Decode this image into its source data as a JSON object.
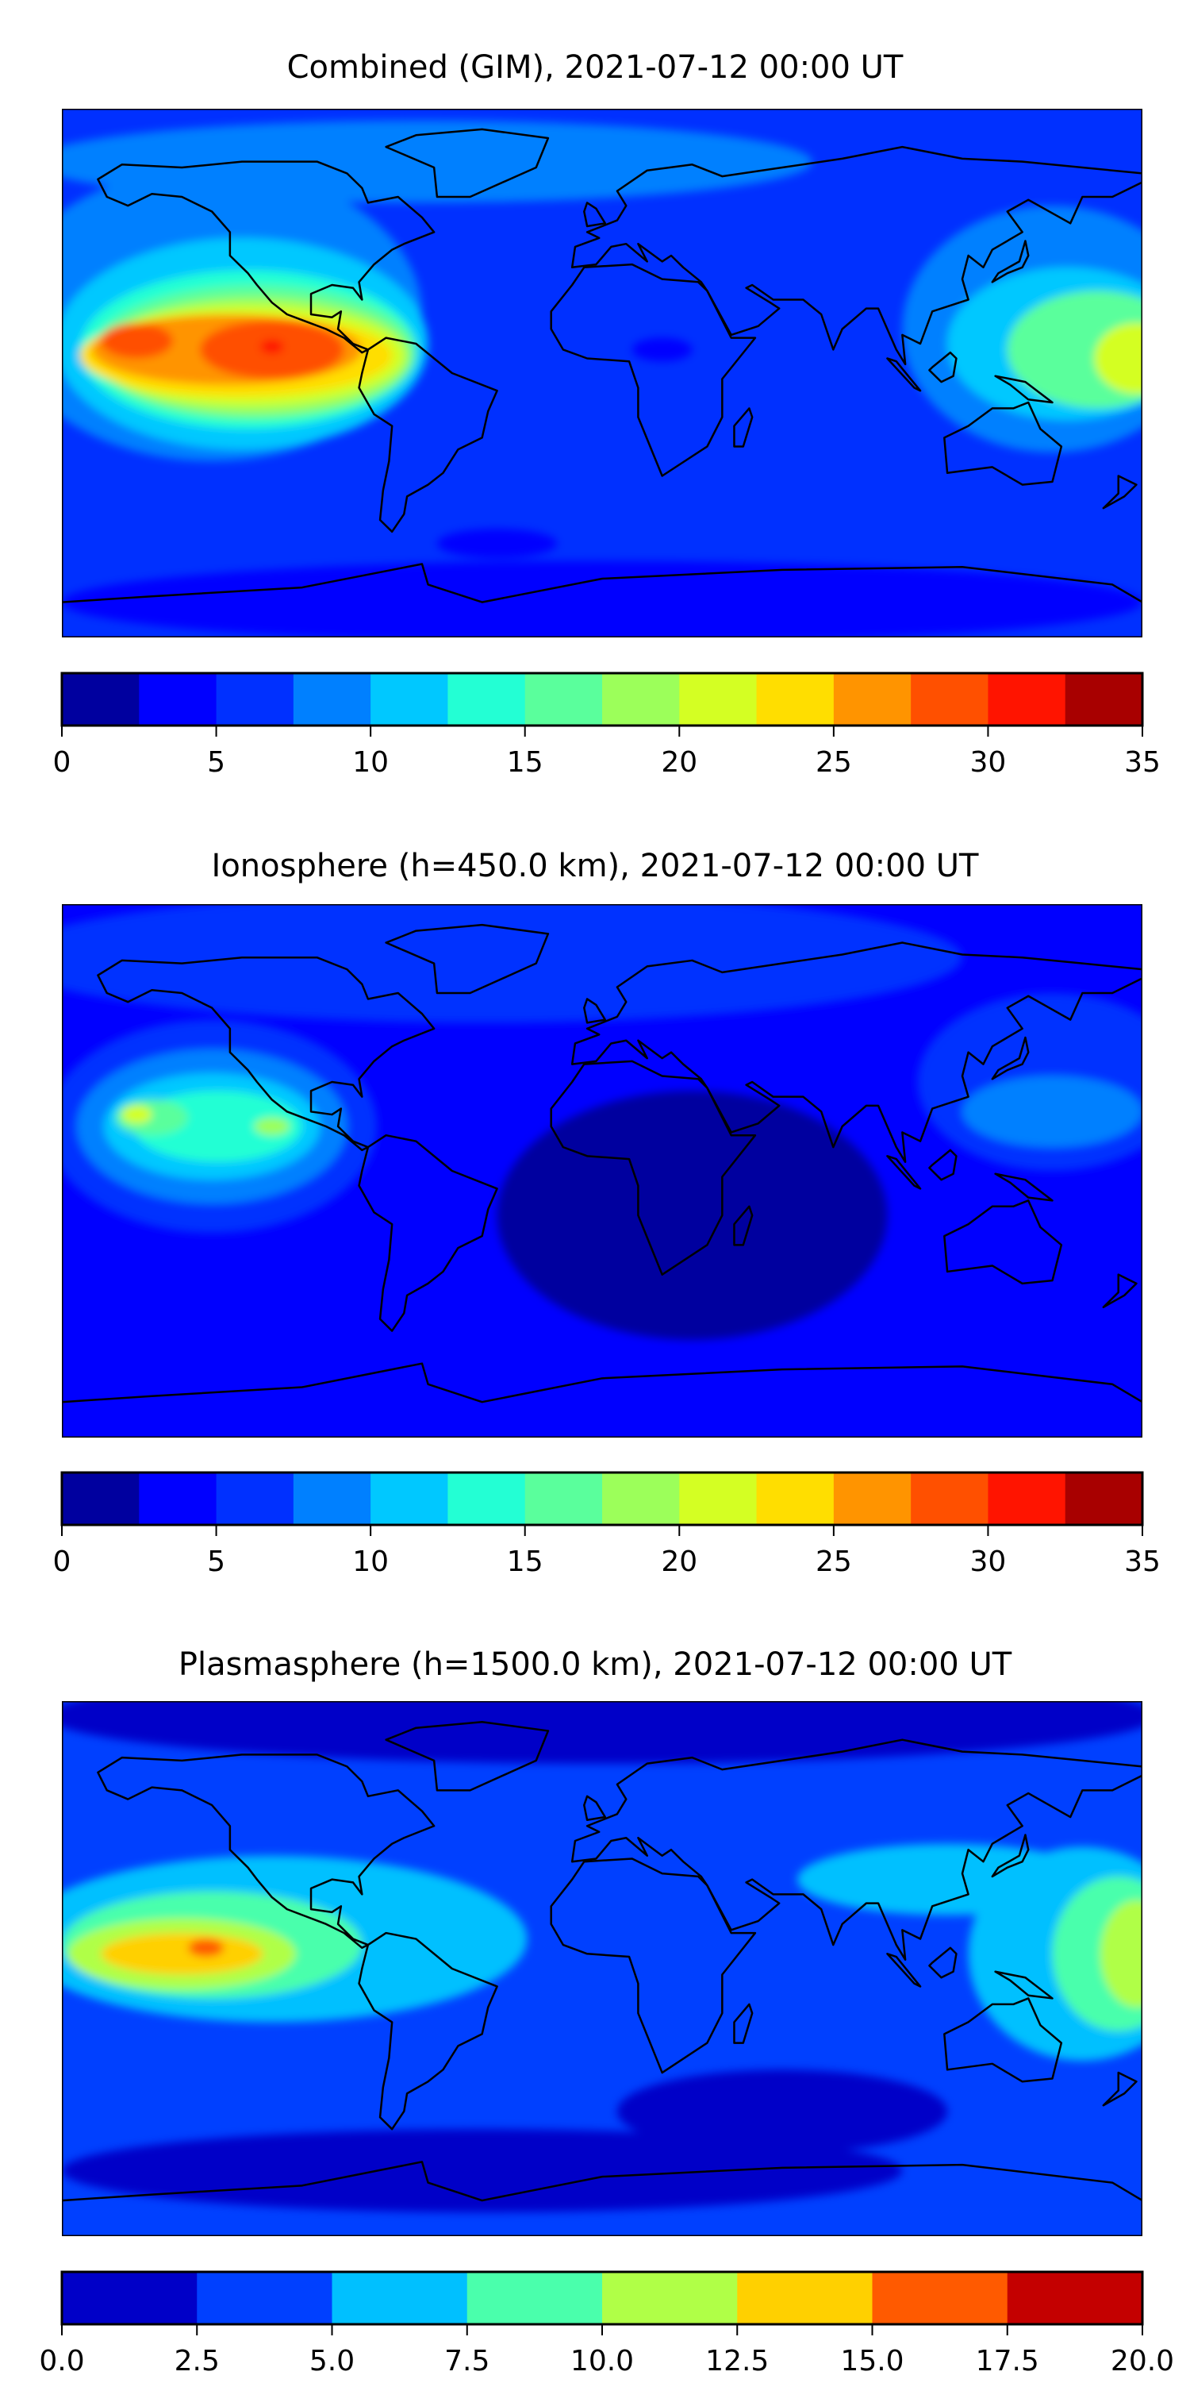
{
  "chart_data": [
    {
      "type": "heatmap",
      "title": "Combined (GIM), 2021-07-12 00:00 UT",
      "xlim": [
        -180,
        180
      ],
      "ylim": [
        -90,
        90
      ],
      "colorbar": {
        "levels": [
          0,
          2.5,
          5,
          7.5,
          10,
          12.5,
          15,
          17.5,
          20,
          22.5,
          25,
          27.5,
          30,
          32.5,
          35
        ],
        "colors": [
          "#00009F",
          "#0000FF",
          "#0030FF",
          "#0080FF",
          "#00C8FF",
          "#23FFD4",
          "#5AFF9C",
          "#9CFF5A",
          "#D4FF23",
          "#FFDE00",
          "#FF9400",
          "#FF5000",
          "#FF1400",
          "#A80000"
        ],
        "ticks": [
          "0",
          "5",
          "10",
          "15",
          "20",
          "25",
          "30",
          "35"
        ],
        "tick_values": [
          0,
          5,
          10,
          15,
          20,
          25,
          30,
          35
        ]
      },
      "background_level": 2,
      "field_blobs": [
        {
          "lon": -60,
          "lat": 72,
          "rx": 130,
          "ry": 14,
          "level": 3
        },
        {
          "lon": -130,
          "lat": 20,
          "rx": 70,
          "ry": 50,
          "level": 3
        },
        {
          "lon": -120,
          "lat": 10,
          "rx": 62,
          "ry": 36,
          "level": 4
        },
        {
          "lon": -118,
          "lat": 8,
          "rx": 56,
          "ry": 27,
          "level": 5
        },
        {
          "lon": -116,
          "lat": 7,
          "rx": 54,
          "ry": 23,
          "level": 6
        },
        {
          "lon": -116,
          "lat": 6,
          "rx": 52,
          "ry": 20,
          "level": 7
        },
        {
          "lon": -118,
          "lat": 6,
          "rx": 52,
          "ry": 17,
          "level": 8
        },
        {
          "lon": -122,
          "lat": 6,
          "rx": 52,
          "ry": 14,
          "level": 9
        },
        {
          "lon": -125,
          "lat": 8,
          "rx": 45,
          "ry": 12,
          "level": 10
        },
        {
          "lon": -110,
          "lat": 8,
          "rx": 24,
          "ry": 10,
          "level": 11
        },
        {
          "lon": -155,
          "lat": 11,
          "rx": 12,
          "ry": 6,
          "level": 11
        },
        {
          "lon": -110,
          "lat": 9,
          "rx": 4,
          "ry": 2.5,
          "level": 12
        },
        {
          "lon": 150,
          "lat": 15,
          "rx": 50,
          "ry": 42,
          "level": 3
        },
        {
          "lon": 155,
          "lat": 10,
          "rx": 40,
          "ry": 26,
          "level": 4
        },
        {
          "lon": 165,
          "lat": 8,
          "rx": 30,
          "ry": 20,
          "level": 6
        },
        {
          "lon": 178,
          "lat": 5,
          "rx": 14,
          "ry": 12,
          "level": 8
        },
        {
          "lon": 0,
          "lat": -78,
          "rx": 180,
          "ry": 14,
          "level": 1
        },
        {
          "lon": 20,
          "lat": 8,
          "rx": 10,
          "ry": 4,
          "level": 1
        },
        {
          "lon": -35,
          "lat": -58,
          "rx": 20,
          "ry": 5,
          "level": 1
        }
      ]
    },
    {
      "type": "heatmap",
      "title": "Ionosphere  (h=450.0 km), 2021-07-12 00:00 UT",
      "xlim": [
        -180,
        180
      ],
      "ylim": [
        -90,
        90
      ],
      "colorbar": {
        "levels": [
          0,
          2.5,
          5,
          7.5,
          10,
          12.5,
          15,
          17.5,
          20,
          22.5,
          25,
          27.5,
          30,
          32.5,
          35
        ],
        "colors": [
          "#00009F",
          "#0000FF",
          "#0030FF",
          "#0080FF",
          "#00C8FF",
          "#23FFD4",
          "#5AFF9C",
          "#9CFF5A",
          "#D4FF23",
          "#FFDE00",
          "#FF9400",
          "#FF5000",
          "#FF1400",
          "#A80000"
        ],
        "ticks": [
          "0",
          "5",
          "10",
          "15",
          "20",
          "25",
          "30",
          "35"
        ],
        "tick_values": [
          0,
          5,
          10,
          15,
          20,
          25,
          30,
          35
        ]
      },
      "background_level": 1,
      "field_blobs": [
        {
          "lon": -40,
          "lat": 72,
          "rx": 160,
          "ry": 22,
          "level": 2
        },
        {
          "lon": 150,
          "lat": 30,
          "rx": 45,
          "ry": 30,
          "level": 2
        },
        {
          "lon": 30,
          "lat": -15,
          "rx": 65,
          "ry": 42,
          "level": 0
        },
        {
          "lon": -130,
          "lat": 15,
          "rx": 55,
          "ry": 36,
          "level": 2
        },
        {
          "lon": -130,
          "lat": 15,
          "rx": 45,
          "ry": 26,
          "level": 3
        },
        {
          "lon": -130,
          "lat": 15,
          "rx": 36,
          "ry": 18,
          "level": 4
        },
        {
          "lon": -128,
          "lat": 15,
          "rx": 28,
          "ry": 12,
          "level": 5
        },
        {
          "lon": -150,
          "lat": 18,
          "rx": 12,
          "ry": 6,
          "level": 6
        },
        {
          "lon": -155,
          "lat": 19,
          "rx": 5,
          "ry": 3,
          "level": 8
        },
        {
          "lon": -110,
          "lat": 15,
          "rx": 6,
          "ry": 3,
          "level": 7
        },
        {
          "lon": 150,
          "lat": 20,
          "rx": 30,
          "ry": 12,
          "level": 3
        }
      ]
    },
    {
      "type": "heatmap",
      "title": "Plasmasphere (h=1500.0 km), 2021-07-12 00:00 UT",
      "xlim": [
        -180,
        180
      ],
      "ylim": [
        -90,
        90
      ],
      "colorbar": {
        "levels": [
          0,
          2.5,
          5,
          7.5,
          10,
          12.5,
          15,
          17.5,
          20
        ],
        "colors": [
          "#0000C8",
          "#0040FF",
          "#00C0FF",
          "#4AFFAC",
          "#B0FF47",
          "#FFD000",
          "#FF5A00",
          "#C40000"
        ],
        "ticks": [
          "0.0",
          "2.5",
          "5.0",
          "7.5",
          "10.0",
          "12.5",
          "15.0",
          "17.5",
          "20.0"
        ],
        "tick_values": [
          0,
          2.5,
          5,
          7.5,
          10,
          12.5,
          15,
          17.5,
          20
        ]
      },
      "background_level": 1,
      "field_blobs": [
        {
          "lon": 0,
          "lat": 85,
          "rx": 185,
          "ry": 16,
          "level": 0
        },
        {
          "lon": -40,
          "lat": -68,
          "rx": 140,
          "ry": 14,
          "level": 0
        },
        {
          "lon": 60,
          "lat": -48,
          "rx": 55,
          "ry": 14,
          "level": 0
        },
        {
          "lon": -110,
          "lat": 10,
          "rx": 85,
          "ry": 28,
          "level": 2
        },
        {
          "lon": 115,
          "lat": 30,
          "rx": 50,
          "ry": 12,
          "level": 2
        },
        {
          "lon": 160,
          "lat": 5,
          "rx": 38,
          "ry": 36,
          "level": 2
        },
        {
          "lon": -130,
          "lat": 8,
          "rx": 50,
          "ry": 18,
          "level": 3
        },
        {
          "lon": 172,
          "lat": 5,
          "rx": 22,
          "ry": 26,
          "level": 3
        },
        {
          "lon": -140,
          "lat": 5,
          "rx": 38,
          "ry": 12,
          "level": 4
        },
        {
          "lon": 178,
          "lat": 5,
          "rx": 12,
          "ry": 18,
          "level": 4
        },
        {
          "lon": -140,
          "lat": 5,
          "rx": 27,
          "ry": 7,
          "level": 5
        },
        {
          "lon": -132,
          "lat": 7,
          "rx": 6,
          "ry": 3,
          "level": 6
        }
      ]
    }
  ]
}
